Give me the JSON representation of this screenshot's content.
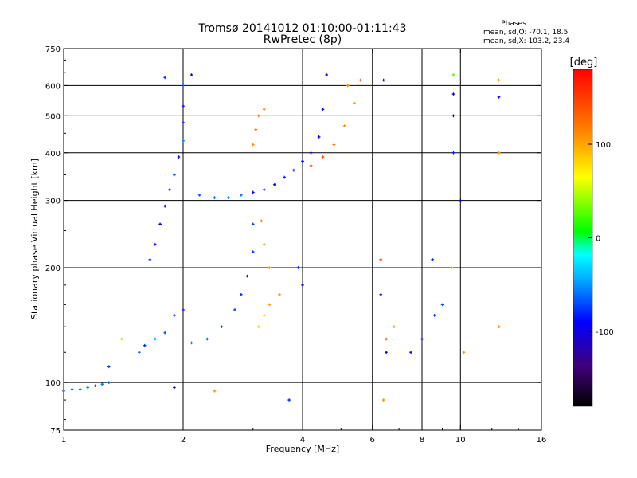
{
  "chart_data": {
    "type": "scatter",
    "title": "Tromsø 20141012 01:10:00-01:11:43",
    "subtitle": "RwPretec (8p)",
    "xlabel": "Frequency [MHz]",
    "ylabel": "Stationary phase Virtual Height [km]",
    "x_scale": "log",
    "y_scale": "log",
    "xlim": [
      1,
      16
    ],
    "ylim": [
      75,
      750
    ],
    "x_ticks": [
      1,
      2,
      4,
      6,
      8,
      10,
      16
    ],
    "y_ticks": [
      75,
      100,
      200,
      300,
      400,
      500,
      600,
      750
    ],
    "x_gridlines": [
      2,
      4,
      6,
      8,
      10
    ],
    "y_gridlines": [
      100,
      200,
      300,
      400,
      500,
      600
    ],
    "grid": true,
    "stats_title": "Phases",
    "stats": [
      "mean, sd,O: -70.1, 18.5",
      "mean, sd,X: 103.2, 23.4"
    ],
    "colorbar": {
      "label": "[deg]",
      "range": [
        -180,
        180
      ],
      "ticks": [
        -100,
        0,
        100
      ],
      "colors": [
        "#000000",
        "#40007a",
        "#0000ff",
        "#00b0ff",
        "#00ffff",
        "#00ff00",
        "#ffff00",
        "#ff8000",
        "#ff0000"
      ]
    },
    "series": [
      {
        "points": [
          [
            1.0,
            95,
            -75
          ],
          [
            1.05,
            96,
            -75
          ],
          [
            1.1,
            96,
            -75
          ],
          [
            1.15,
            97,
            -75
          ],
          [
            1.2,
            98,
            -75
          ],
          [
            1.25,
            99,
            -75
          ],
          [
            1.3,
            100,
            -75
          ],
          [
            1.55,
            120,
            -80
          ],
          [
            1.6,
            125,
            -90
          ],
          [
            1.7,
            130,
            -60
          ],
          [
            1.8,
            135,
            -80
          ],
          [
            1.9,
            150,
            -90
          ],
          [
            2.0,
            155,
            -95
          ],
          [
            1.65,
            210,
            -85
          ],
          [
            1.7,
            230,
            -95
          ],
          [
            1.75,
            260,
            -110
          ],
          [
            1.8,
            290,
            -100
          ],
          [
            1.85,
            320,
            -95
          ],
          [
            1.9,
            350,
            -80
          ],
          [
            1.95,
            390,
            -105
          ],
          [
            2.0,
            430,
            -75
          ],
          [
            2.0,
            480,
            -90
          ],
          [
            2.0,
            530,
            -100
          ],
          [
            2.0,
            600,
            -85
          ],
          [
            1.8,
            630,
            -90
          ],
          [
            2.1,
            640,
            -110
          ],
          [
            2.2,
            310,
            -80
          ],
          [
            2.4,
            305,
            -75
          ],
          [
            2.6,
            305,
            -70
          ],
          [
            2.8,
            310,
            -75
          ],
          [
            3.0,
            315,
            -100
          ],
          [
            3.2,
            320,
            -105
          ],
          [
            3.4,
            330,
            -100
          ],
          [
            3.6,
            345,
            -90
          ],
          [
            3.8,
            360,
            -85
          ],
          [
            4.0,
            380,
            -100
          ],
          [
            4.2,
            400,
            -105
          ],
          [
            4.4,
            440,
            -110
          ],
          [
            4.5,
            520,
            -95
          ],
          [
            4.6,
            640,
            -100
          ],
          [
            2.1,
            127,
            -70
          ],
          [
            2.3,
            130,
            -75
          ],
          [
            2.5,
            140,
            -80
          ],
          [
            2.7,
            155,
            -85
          ],
          [
            2.8,
            170,
            -90
          ],
          [
            2.9,
            190,
            -95
          ],
          [
            3.0,
            220,
            -90
          ],
          [
            3.0,
            260,
            -85
          ],
          [
            3.1,
            140,
            80
          ],
          [
            3.2,
            150,
            95
          ],
          [
            3.3,
            160,
            105
          ],
          [
            3.5,
            170,
            110
          ],
          [
            3.3,
            200,
            110
          ],
          [
            3.2,
            230,
            110
          ],
          [
            3.15,
            265,
            120
          ],
          [
            3.0,
            420,
            115
          ],
          [
            3.05,
            460,
            130
          ],
          [
            3.1,
            500,
            125
          ],
          [
            3.2,
            520,
            120
          ],
          [
            4.2,
            370,
            150
          ],
          [
            4.5,
            390,
            140
          ],
          [
            4.8,
            420,
            130
          ],
          [
            5.1,
            470,
            115
          ],
          [
            5.4,
            540,
            110
          ],
          [
            5.6,
            620,
            140
          ],
          [
            5.2,
            600,
            120
          ],
          [
            3.9,
            200,
            -90
          ],
          [
            4.0,
            180,
            -100
          ],
          [
            6.3,
            210,
            150
          ],
          [
            6.3,
            170,
            -100
          ],
          [
            6.5,
            130,
            135
          ],
          [
            6.5,
            120,
            -100
          ],
          [
            6.8,
            140,
            100
          ],
          [
            7.5,
            120,
            -110
          ],
          [
            8.0,
            130,
            -105
          ],
          [
            8.5,
            210,
            -90
          ],
          [
            8.6,
            150,
            -85
          ],
          [
            9.0,
            160,
            -80
          ],
          [
            9.5,
            200,
            100
          ],
          [
            9.6,
            400,
            -95
          ],
          [
            9.6,
            500,
            -100
          ],
          [
            9.6,
            570,
            -110
          ],
          [
            9.6,
            640,
            20
          ],
          [
            10.0,
            300,
            -100
          ],
          [
            10.2,
            120,
            110
          ],
          [
            12.5,
            140,
            110
          ],
          [
            12.5,
            400,
            110
          ],
          [
            12.5,
            560,
            -100
          ],
          [
            12.5,
            620,
            110
          ],
          [
            6.4,
            620,
            -110
          ],
          [
            6.4,
            90,
            110
          ],
          [
            1.9,
            97,
            -130
          ],
          [
            2.4,
            95,
            110
          ],
          [
            3.7,
            90,
            -90
          ],
          [
            1.4,
            130,
            40
          ],
          [
            1.3,
            110,
            -85
          ]
        ]
      }
    ]
  }
}
